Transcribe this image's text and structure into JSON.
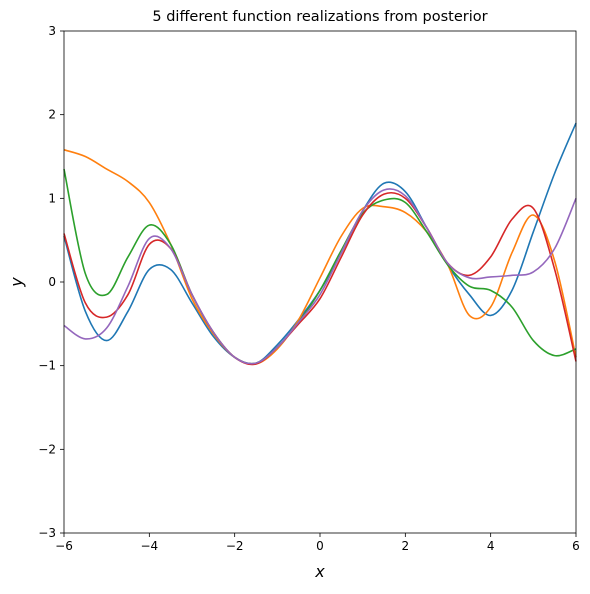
{
  "chart_data": {
    "type": "line",
    "title": "5 different function realizations from posterior",
    "x_label": "x",
    "y_label": "y",
    "x": [
      -6,
      -5.5,
      -5,
      -4.5,
      -4,
      -3.5,
      -3,
      -2.5,
      -2,
      -1.5,
      -1,
      -0.5,
      0,
      0.5,
      1,
      1.5,
      2,
      2.5,
      3,
      3.5,
      4,
      4.5,
      5,
      5.5,
      6
    ],
    "series": [
      {
        "color": "#1f77b4",
        "values": [
          0.55,
          -0.35,
          -0.7,
          -0.35,
          0.15,
          0.15,
          -0.25,
          -0.65,
          -0.9,
          -0.97,
          -0.75,
          -0.45,
          -0.1,
          0.35,
          0.85,
          1.18,
          1.08,
          0.65,
          0.2,
          -0.15,
          -0.4,
          -0.1,
          0.6,
          1.3,
          1.9
        ]
      },
      {
        "color": "#ff7f0e",
        "values": [
          1.58,
          1.5,
          1.35,
          1.2,
          0.95,
          0.45,
          -0.2,
          -0.62,
          -0.9,
          -0.98,
          -0.8,
          -0.45,
          0.05,
          0.55,
          0.88,
          0.9,
          0.83,
          0.6,
          0.2,
          -0.4,
          -0.3,
          0.35,
          0.8,
          0.25,
          -0.9
        ]
      },
      {
        "color": "#2ca02c",
        "values": [
          1.35,
          0.1,
          -0.15,
          0.3,
          0.68,
          0.45,
          -0.15,
          -0.6,
          -0.9,
          -0.97,
          -0.78,
          -0.48,
          -0.1,
          0.38,
          0.82,
          0.98,
          0.95,
          0.6,
          0.2,
          -0.05,
          -0.1,
          -0.3,
          -0.7,
          -0.88,
          -0.8
        ]
      },
      {
        "color": "#d62728",
        "values": [
          0.58,
          -0.25,
          -0.42,
          -0.15,
          0.45,
          0.4,
          -0.15,
          -0.6,
          -0.9,
          -0.98,
          -0.78,
          -0.5,
          -0.2,
          0.3,
          0.8,
          1.05,
          1.0,
          0.65,
          0.22,
          0.08,
          0.3,
          0.75,
          0.88,
          0.15,
          -0.95
        ]
      },
      {
        "color": "#9467bd",
        "values": [
          -0.52,
          -0.68,
          -0.55,
          -0.05,
          0.52,
          0.4,
          -0.15,
          -0.6,
          -0.9,
          -0.97,
          -0.78,
          -0.48,
          -0.15,
          0.35,
          0.85,
          1.1,
          1.03,
          0.65,
          0.22,
          0.05,
          0.06,
          0.08,
          0.12,
          0.4,
          1.0
        ]
      }
    ],
    "xlim": [
      -6,
      6
    ],
    "ylim": [
      -3,
      3
    ],
    "xticks": [
      {
        "value": -6,
        "label": "−6"
      },
      {
        "value": -4,
        "label": "−4"
      },
      {
        "value": -2,
        "label": "−2"
      },
      0,
      2,
      4,
      6
    ],
    "yticks": [
      {
        "value": -3,
        "label": "−3"
      },
      {
        "value": -2,
        "label": "−2"
      },
      {
        "value": -1,
        "label": "−1"
      },
      0,
      1,
      2,
      3
    ]
  }
}
